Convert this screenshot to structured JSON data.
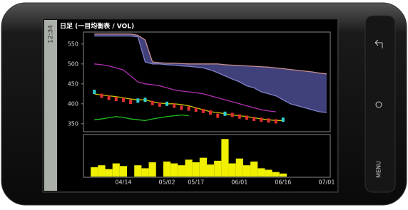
{
  "status_time": "12:34",
  "menu_label": "MENU",
  "chart_data": {
    "type": "line",
    "title": "日足 (一目均衡表 / VOL)",
    "categories": [
      null,
      null,
      null,
      null,
      null,
      "04/14",
      null,
      null,
      null,
      null,
      null,
      "05/02",
      null,
      null,
      null,
      "05/17",
      null,
      null,
      null,
      null,
      null,
      "06/01",
      null,
      null,
      null,
      null,
      null,
      "06/16",
      null,
      null,
      null,
      null,
      null,
      "07/01"
    ],
    "ylim": [
      330,
      580
    ],
    "yticks": [
      350,
      400,
      450,
      500,
      550
    ],
    "grid": false,
    "series": [
      {
        "color": "#c89090",
        "values": [
          null,
          575,
          575,
          575,
          575,
          575,
          575,
          572,
          560,
          505,
          503,
          502,
          502,
          501,
          500,
          500,
          500,
          500,
          500,
          498,
          497,
          496,
          495,
          494,
          493,
          492,
          490,
          488,
          486,
          484,
          482,
          480,
          477,
          475
        ]
      },
      {
        "color": "#8080c8",
        "values": [
          null,
          570,
          570,
          570,
          570,
          570,
          570,
          568,
          505,
          500,
          500,
          498,
          497,
          495,
          494,
          492,
          490,
          485,
          478,
          470,
          462,
          455,
          445,
          440,
          430,
          425,
          420,
          410,
          400,
          395,
          390,
          385,
          380,
          378
        ]
      },
      {
        "color": "#b030b0",
        "values": [
          null,
          500,
          498,
          495,
          490,
          485,
          470,
          455,
          450,
          448,
          445,
          440,
          435,
          432,
          430,
          428,
          425,
          420,
          415,
          410,
          405,
          400,
          395,
          390,
          385,
          382,
          380,
          null,
          null,
          null,
          null,
          null,
          null,
          null
        ]
      },
      {
        "color": "#d0c000",
        "values": [
          null,
          425,
          422,
          420,
          418,
          415,
          412,
          410,
          410,
          405,
          402,
          400,
          400,
          398,
          395,
          390,
          385,
          380,
          378,
          375,
          372,
          370,
          368,
          365,
          362,
          360,
          358,
          358,
          null,
          null,
          null,
          null,
          null,
          null
        ]
      },
      {
        "color": "#20c020",
        "values": [
          null,
          360,
          362,
          365,
          368,
          366,
          362,
          360,
          358,
          362,
          365,
          368,
          370,
          372,
          370,
          null,
          null,
          null,
          null,
          null,
          null,
          null,
          null,
          null,
          null,
          null,
          null,
          null,
          null,
          null,
          null,
          null,
          null,
          null
        ]
      },
      {
        "color": "#30d0d0",
        "values": [
          null,
          430,
          420,
          415,
          412,
          410,
          405,
          408,
          410,
          402,
          398,
          400,
          395,
          390,
          388,
          385,
          382,
          378,
          370,
          375,
          372,
          368,
          365,
          362,
          360,
          358,
          356,
          360,
          null,
          null,
          null,
          null,
          null,
          null
        ]
      }
    ],
    "cloud_color": "#40407a",
    "volume": {
      "color": "#f0f000",
      "ylim": [
        0,
        110
      ],
      "values": [
        null,
        25,
        30,
        20,
        35,
        28,
        null,
        30,
        22,
        38,
        null,
        40,
        35,
        30,
        45,
        38,
        50,
        32,
        42,
        100,
        35,
        48,
        30,
        40,
        22,
        18,
        12,
        8,
        null,
        null,
        null,
        null,
        null,
        null
      ]
    }
  }
}
